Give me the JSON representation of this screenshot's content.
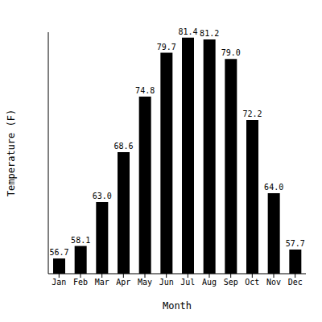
{
  "chart_data": {
    "type": "bar",
    "x_label": "Month",
    "y_label": "Temperature (F)",
    "categories": [
      "Jan",
      "Feb",
      "Mar",
      "Apr",
      "May",
      "Jun",
      "Jul",
      "Aug",
      "Sep",
      "Oct",
      "Nov",
      "Dec"
    ],
    "values": [
      56.7,
      58.1,
      63.0,
      68.6,
      74.8,
      79.7,
      81.4,
      81.2,
      79.0,
      72.2,
      64.0,
      57.7
    ],
    "value_labels": [
      "56.7",
      "58.1",
      "63.0",
      "68.6",
      "74.8",
      "79.7",
      "81.4",
      "81.2",
      "79.0",
      "72.2",
      "64.0",
      "57.7"
    ],
    "color": "#000000",
    "ylim": [
      55,
      82
    ],
    "data_labels": true,
    "tick_labels": "x",
    "grid": false
  }
}
